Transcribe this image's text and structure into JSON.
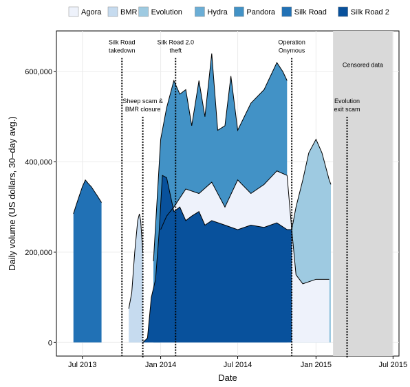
{
  "chart_data": {
    "type": "area",
    "xlabel": "Date",
    "ylabel": "Daily volume (US dollars, 30–day avg.)",
    "xlim": [
      "2013-05-01",
      "2015-07-15"
    ],
    "ylim": [
      -30000,
      690000
    ],
    "x_ticks": [
      {
        "date": "2013-07-01",
        "label": "Jul 2013"
      },
      {
        "date": "2014-01-01",
        "label": "Jan 2014"
      },
      {
        "date": "2014-07-01",
        "label": "Jul 2014"
      },
      {
        "date": "2015-01-01",
        "label": "Jan 2015"
      },
      {
        "date": "2015-07-01",
        "label": "Jul 2015"
      }
    ],
    "y_ticks": [
      {
        "value": 0,
        "label": "0"
      },
      {
        "value": 200000,
        "label": "200,000"
      },
      {
        "value": 400000,
        "label": "400,000"
      },
      {
        "value": 600000,
        "label": "600,000"
      }
    ],
    "grid": true,
    "legend_position": "top",
    "series": [
      {
        "name": "Agora",
        "color": "#eef2fb"
      },
      {
        "name": "BMR",
        "color": "#c6dbef"
      },
      {
        "name": "Evolution",
        "color": "#9ecae1"
      },
      {
        "name": "Hydra",
        "color": "#6baed6"
      },
      {
        "name": "Pandora",
        "color": "#4292c6"
      },
      {
        "name": "Silk Road",
        "color": "#2171b5"
      },
      {
        "name": "Silk Road 2",
        "color": "#08519c"
      }
    ],
    "stacked_totals": {
      "silk_road": {
        "x": [
          "2013-06-10",
          "2013-06-15",
          "2013-06-22",
          "2013-07-01",
          "2013-07-08",
          "2013-07-15",
          "2013-07-22",
          "2013-07-29",
          "2013-08-05",
          "2013-08-15"
        ],
        "y": [
          285000,
          300000,
          320000,
          345000,
          360000,
          352000,
          345000,
          335000,
          325000,
          310000
        ]
      },
      "bmr": {
        "x": [
          "2013-10-18",
          "2013-10-25",
          "2013-11-01",
          "2013-11-08",
          "2013-11-12",
          "2013-11-15",
          "2013-11-20"
        ],
        "y": [
          75000,
          110000,
          200000,
          270000,
          285000,
          270000,
          200000
        ]
      },
      "silk_road_2": {
        "x": [
          "2013-11-20",
          "2013-12-01",
          "2013-12-10",
          "2013-12-20",
          "2013-12-28",
          "2014-01-05",
          "2014-01-15",
          "2014-02-01",
          "2014-02-15",
          "2014-03-01",
          "2014-03-15",
          "2014-04-01",
          "2014-04-15",
          "2014-05-01",
          "2014-06-01",
          "2014-07-01",
          "2014-08-01",
          "2014-09-01",
          "2014-10-01",
          "2014-10-25",
          "2014-11-05"
        ],
        "y": [
          0,
          10000,
          100000,
          140000,
          240000,
          370000,
          365000,
          290000,
          300000,
          270000,
          280000,
          290000,
          260000,
          270000,
          260000,
          250000,
          260000,
          255000,
          265000,
          250000,
          250000
        ]
      },
      "agora_top": {
        "x": [
          "2014-01-01",
          "2014-01-15",
          "2014-02-01",
          "2014-03-01",
          "2014-04-01",
          "2014-05-01",
          "2014-06-01",
          "2014-07-01",
          "2014-08-01",
          "2014-09-01",
          "2014-10-01",
          "2014-10-25",
          "2014-11-05",
          "2014-11-15",
          "2014-12-01",
          "2015-01-01",
          "2015-02-01"
        ],
        "y": [
          250000,
          280000,
          300000,
          340000,
          330000,
          355000,
          300000,
          360000,
          330000,
          350000,
          380000,
          370000,
          250000,
          150000,
          130000,
          140000,
          140000
        ]
      },
      "evolution_top": {
        "x": [
          "2014-11-05",
          "2014-11-15",
          "2014-12-01",
          "2014-12-15",
          "2015-01-01",
          "2015-01-15",
          "2015-02-01",
          "2015-02-05"
        ],
        "y": [
          250000,
          300000,
          360000,
          420000,
          450000,
          420000,
          360000,
          350000
        ]
      },
      "pandora_hydra_top": {
        "x": [
          "2013-12-15",
          "2014-01-01",
          "2014-01-15",
          "2014-02-01",
          "2014-02-15",
          "2014-03-01",
          "2014-03-15",
          "2014-04-01",
          "2014-04-15",
          "2014-05-01",
          "2014-05-15",
          "2014-06-01",
          "2014-06-15",
          "2014-07-01",
          "2014-08-01",
          "2014-09-01",
          "2014-10-01",
          "2014-10-15",
          "2014-10-25"
        ],
        "y": [
          180000,
          450000,
          520000,
          580000,
          550000,
          560000,
          480000,
          580000,
          500000,
          640000,
          470000,
          480000,
          590000,
          470000,
          530000,
          560000,
          620000,
          600000,
          580000
        ]
      }
    },
    "annotations": [
      {
        "date": "2013-10-02",
        "y_top": 630000,
        "lines": [
          "Silk Road",
          "takedown"
        ]
      },
      {
        "date": "2013-11-20",
        "y_top": 500000,
        "lines": [
          "Sheep scam &",
          "BMR closure"
        ]
      },
      {
        "date": "2014-02-05",
        "y_top": 630000,
        "lines": [
          "Silk Road 2.0",
          "theft"
        ]
      },
      {
        "date": "2014-11-05",
        "y_top": 630000,
        "lines": [
          "Operation",
          "Onymous"
        ]
      },
      {
        "date": "2015-03-15",
        "y_top": 500000,
        "lines": [
          "Evolution",
          "exit scam"
        ]
      }
    ],
    "censored_region": {
      "from": "2015-02-10",
      "to": "2015-06-30",
      "label": "Censored data"
    }
  }
}
